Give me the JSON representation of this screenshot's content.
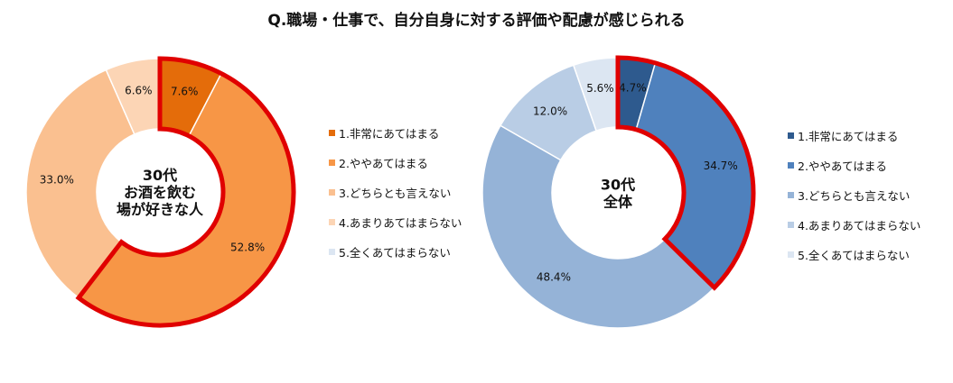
{
  "chart_data": [
    {
      "type": "pie",
      "title": "Q.職場・仕事で、自分自身に対する評価や配慮が感じられる",
      "center_label": [
        "30代",
        "お酒を飲む",
        "場が好きな人"
      ],
      "categories": [
        "1.非常にあてはまる",
        "2.ややあてはまる",
        "3.どちらとも言えない",
        "4.あまりあてはまらない",
        "5.全くあてはまらない"
      ],
      "values": [
        7.6,
        52.8,
        33.0,
        6.6,
        0
      ],
      "value_labels": [
        "7.6%",
        "52.8%",
        "33.0%",
        "6.6%",
        ""
      ],
      "colors": [
        "#E46C0A",
        "#F79646",
        "#FAC090",
        "#FCD5B5",
        "#DCE6F2"
      ],
      "highlight": {
        "segments": [
          0,
          1
        ],
        "color": "#E00000"
      },
      "legend_position": "right"
    },
    {
      "type": "pie",
      "center_label": [
        "30代",
        "全体"
      ],
      "categories": [
        "1.非常にあてはまる",
        "2.ややあてはまる",
        "3.どちらとも言えない",
        "4.あまりあてはまらない",
        "5.全くあてはまらない"
      ],
      "values": [
        4.7,
        34.7,
        48.4,
        12.0,
        5.6
      ],
      "value_labels": [
        "4.7%",
        "34.7%",
        "48.4%",
        "12.0%",
        "5.6%"
      ],
      "colors": [
        "#2E5A8E",
        "#4F81BD",
        "#95B3D7",
        "#B9CDE5",
        "#DCE6F2"
      ],
      "highlight": {
        "segments": [
          0,
          1
        ],
        "color": "#E00000"
      },
      "legend_position": "right"
    }
  ]
}
